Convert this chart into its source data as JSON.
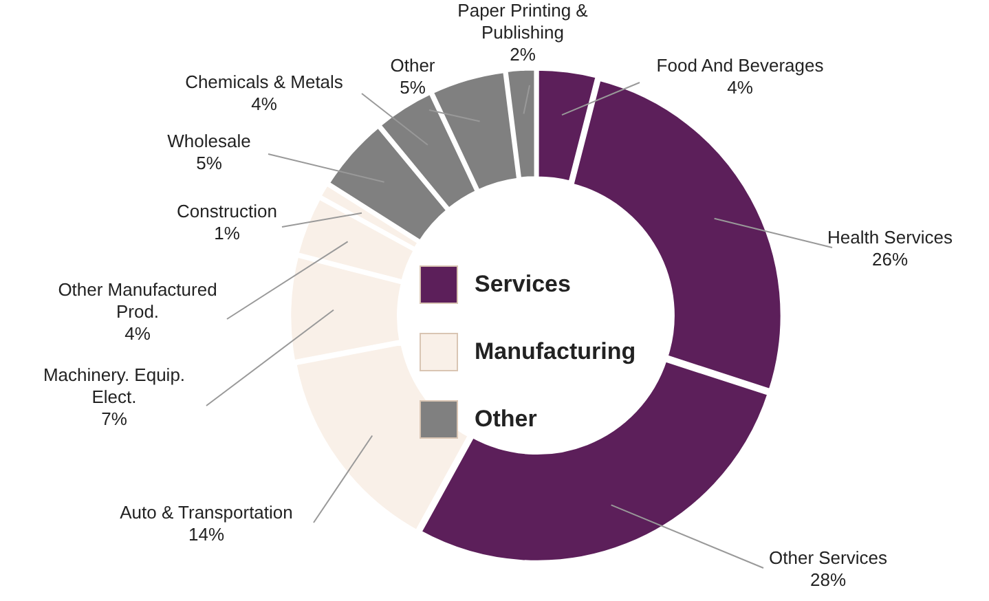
{
  "chart_data": {
    "type": "donut",
    "categories": [
      "Food And Beverages",
      "Health Services",
      "Other Services",
      "Auto & Transportation",
      "Machinery. Equip. Elect.",
      "Other Manufactured Prod.",
      "Construction",
      "Wholesale",
      "Chemicals & Metals",
      "Other",
      "Paper Printing & Publishing"
    ],
    "values": [
      4,
      26,
      28,
      14,
      7,
      4,
      1,
      5,
      4,
      5,
      2
    ],
    "colors": [
      "#5c1f5a",
      "#5c1f5a",
      "#5c1f5a",
      "#f9f0e8",
      "#f9f0e8",
      "#f9f0e8",
      "#f9f0e8",
      "#808080",
      "#808080",
      "#808080",
      "#808080"
    ],
    "value_labels": [
      "4%",
      "26%",
      "28%",
      "14%",
      "7%",
      "4%",
      "1%",
      "5%",
      "4%",
      "5%",
      "2%"
    ],
    "annotations": [
      "Services",
      "Manufacturing",
      "Other"
    ]
  }
}
